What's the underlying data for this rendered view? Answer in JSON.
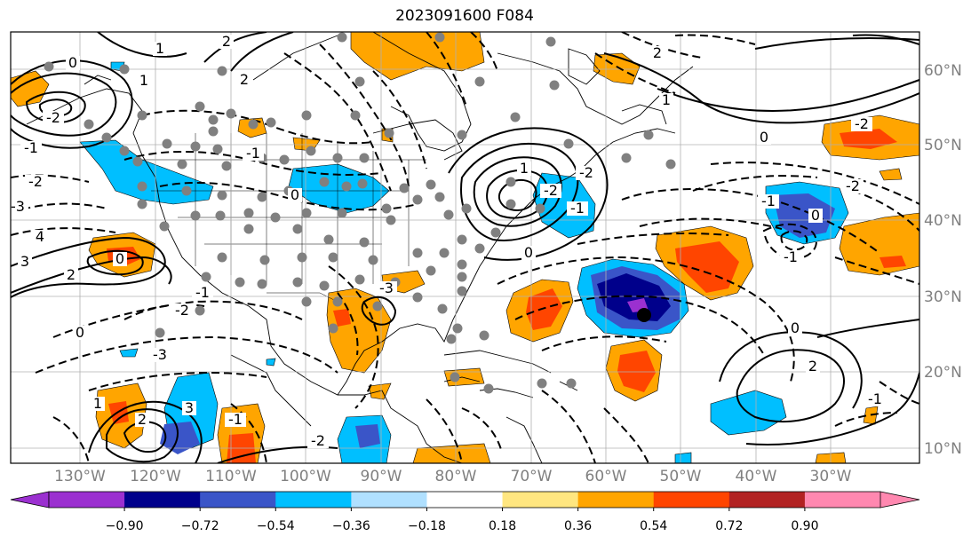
{
  "title": "2023091600 F084",
  "lat_labels": [
    "60°N",
    "50°N",
    "40°N",
    "30°N",
    "20°N",
    "10°N"
  ],
  "lon_labels": [
    "130°W",
    "120°W",
    "110°W",
    "100°W",
    "90°W",
    "80°W",
    "70°W",
    "60°W",
    "50°W",
    "40°W",
    "30°W"
  ],
  "colorbar": {
    "ticks": [
      "−0.90",
      "−0.72",
      "−0.54",
      "−0.36",
      "−0.18",
      "0.18",
      "0.36",
      "0.54",
      "0.72",
      "0.90"
    ],
    "colors": [
      "#9b30d0",
      "#00008b",
      "#3a55c8",
      "#00bfff",
      "#b0e0ff",
      "#ffffff",
      "#ffe680",
      "#ffa500",
      "#ff4500",
      "#b22222",
      "#ff88b0"
    ],
    "extend_low_color": "#9b30d0",
    "extend_high_color": "#ff88b0"
  },
  "contour_labels": [
    "0",
    "2",
    "-1",
    "1",
    "-2",
    "-3",
    "3",
    "4",
    "0",
    "2",
    "1",
    "-1",
    "0",
    "-2",
    "-3",
    "2",
    "3",
    "-2",
    "-1",
    "1",
    "0",
    "-1",
    "-2",
    "2",
    "1",
    "-2",
    "-3",
    "-2",
    "-1",
    "0",
    "1",
    "2",
    "-2",
    "0",
    "-1",
    "0",
    "-2",
    "-1",
    "2",
    "0",
    "-1"
  ]
}
